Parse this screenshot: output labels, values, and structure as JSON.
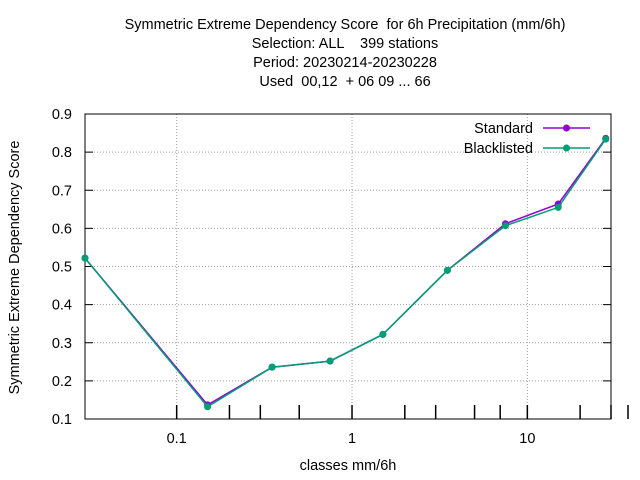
{
  "chart_data": {
    "type": "line",
    "title_lines": [
      "Symmetric Extreme Dependency Score  for 6h Precipitation (mm/6h)",
      "Selection: ALL    399 stations",
      "Period: 20230214-20230228",
      "Used  00,12  + 06 09 ... 66"
    ],
    "xlabel": "classes mm/6h",
    "ylabel": "Symmetric Extreme Dependency Score",
    "x_scale": "log",
    "xlim": [
      0.03,
      30
    ],
    "ylim": [
      0.1,
      0.9
    ],
    "x_ticks": [
      {
        "value": 0.1,
        "label": "0.1"
      },
      {
        "value": 1,
        "label": "1"
      },
      {
        "value": 10,
        "label": "10"
      }
    ],
    "y_ticks": [
      {
        "value": 0.1,
        "label": "0.1"
      },
      {
        "value": 0.2,
        "label": "0.2"
      },
      {
        "value": 0.3,
        "label": "0.3"
      },
      {
        "value": 0.4,
        "label": "0.4"
      },
      {
        "value": 0.5,
        "label": "0.5"
      },
      {
        "value": 0.6,
        "label": "0.6"
      },
      {
        "value": 0.7,
        "label": "0.7"
      },
      {
        "value": 0.8,
        "label": "0.8"
      },
      {
        "value": 0.9,
        "label": "0.9"
      }
    ],
    "grid": true,
    "legend_position": "top-right",
    "x": [
      0.03,
      0.15,
      0.35,
      0.75,
      1.5,
      3.5,
      7.5,
      15,
      28
    ],
    "series": [
      {
        "name": "Standard",
        "color": "#9400d3",
        "values": [
          0.522,
          0.137,
          0.236,
          0.252,
          0.322,
          0.49,
          0.612,
          0.664,
          0.836
        ]
      },
      {
        "name": "Blacklisted",
        "color": "#009e73",
        "values": [
          0.522,
          0.132,
          0.236,
          0.252,
          0.322,
          0.49,
          0.607,
          0.655,
          0.834
        ]
      }
    ]
  }
}
